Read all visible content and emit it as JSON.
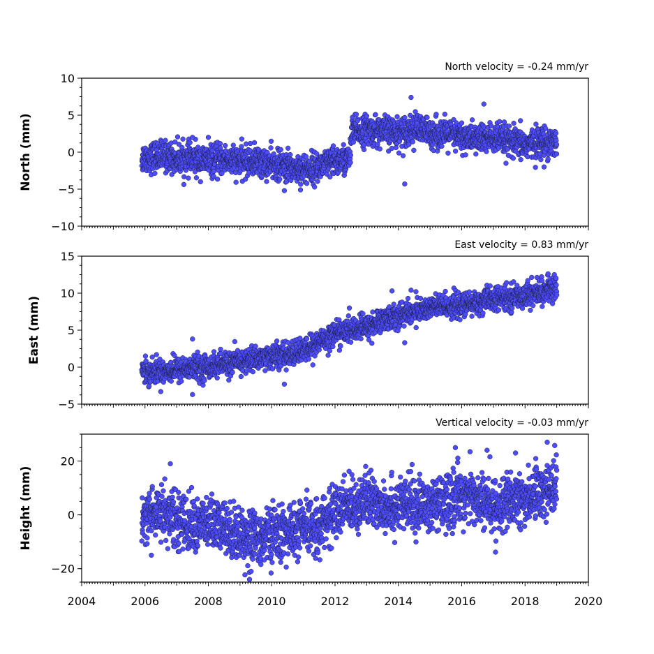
{
  "chart_data": {
    "type": "scatter",
    "x_axis": {
      "range": [
        2004,
        2020
      ],
      "ticks": [
        2004,
        2006,
        2008,
        2010,
        2012,
        2014,
        2016,
        2018,
        2020
      ],
      "tick_labels": [
        "2004",
        "2006",
        "2008",
        "2010",
        "2012",
        "2014",
        "2016",
        "2018",
        "2020"
      ]
    },
    "colors": {
      "marker_fill": "#4d4dff",
      "marker_edge": "#1a1a3a"
    },
    "panels": [
      {
        "id": "north",
        "ylabel": "North (mm)",
        "annotation": "North velocity = -0.24 mm/yr",
        "ylim": [
          -10,
          10
        ],
        "yticks": [
          -10,
          -5,
          0,
          5,
          10
        ],
        "ytick_labels": [
          "−10",
          "−5",
          "0",
          "5",
          "10"
        ],
        "x": [
          2005.9,
          2006.5,
          2007.0,
          2007.5,
          2008.0,
          2008.5,
          2009.0,
          2009.5,
          2010.0,
          2010.5,
          2011.0,
          2011.5,
          2012.0,
          2012.45,
          2012.55,
          2013.0,
          2013.5,
          2014.0,
          2014.5,
          2015.0,
          2015.5,
          2016.0,
          2016.5,
          2017.0,
          2017.5,
          2018.0,
          2018.5,
          2019.0
        ],
        "y": [
          -0.8,
          -0.5,
          -0.8,
          -1.0,
          -1.2,
          -1.0,
          -1.3,
          -1.2,
          -1.7,
          -2.0,
          -2.3,
          -2.0,
          -1.3,
          -1.0,
          2.8,
          3.0,
          2.8,
          2.7,
          3.2,
          2.6,
          2.4,
          2.0,
          1.8,
          1.9,
          1.4,
          1.0,
          1.4,
          1.5
        ],
        "scatter": 1.0,
        "outliers": [
          [
            2014.2,
            -4.3
          ],
          [
            2014.4,
            7.4
          ],
          [
            2016.7,
            6.5
          ],
          [
            2018.6,
            -2.0
          ],
          [
            2010.4,
            -5.2
          ],
          [
            2007.5,
            2.0
          ],
          [
            2008.0,
            2.0
          ]
        ]
      },
      {
        "id": "east",
        "ylabel": "East (mm)",
        "annotation": "East velocity = 0.83 mm/yr",
        "ylim": [
          -5,
          15
        ],
        "yticks": [
          -5,
          0,
          5,
          10,
          15
        ],
        "ytick_labels": [
          "−5",
          "0",
          "5",
          "10",
          "15"
        ],
        "x": [
          2005.9,
          2006.5,
          2007.0,
          2007.5,
          2008.0,
          2008.5,
          2009.0,
          2009.5,
          2010.0,
          2010.5,
          2011.0,
          2011.5,
          2012.0,
          2012.5,
          2013.0,
          2013.5,
          2014.0,
          2014.5,
          2015.0,
          2015.5,
          2016.0,
          2016.5,
          2017.0,
          2017.5,
          2018.0,
          2018.5,
          2019.0
        ],
        "y": [
          -0.5,
          -0.6,
          -0.3,
          -0.1,
          0.0,
          0.4,
          0.7,
          1.2,
          1.5,
          1.6,
          2.2,
          3.4,
          4.6,
          5.0,
          5.4,
          6.4,
          7.0,
          7.5,
          8.0,
          8.3,
          8.3,
          8.7,
          9.2,
          9.4,
          9.8,
          10.1,
          10.8
        ],
        "scatter": 0.8,
        "outliers": [
          [
            2007.5,
            3.8
          ],
          [
            2007.5,
            -3.7
          ],
          [
            2010.4,
            -2.3
          ],
          [
            2011.3,
            0.3
          ],
          [
            2013.8,
            10.3
          ],
          [
            2014.2,
            3.3
          ],
          [
            2014.4,
            10.4
          ]
        ]
      },
      {
        "id": "height",
        "ylabel": "Height (mm)",
        "annotation": "Vertical velocity = -0.03 mm/yr",
        "ylim": [
          -25,
          30
        ],
        "yticks": [
          -20,
          0,
          20
        ],
        "ytick_labels": [
          "−20",
          "0",
          "20"
        ],
        "x": [
          2005.9,
          2006.5,
          2007.0,
          2007.5,
          2008.0,
          2008.5,
          2009.0,
          2009.5,
          2010.0,
          2010.5,
          2011.0,
          2011.5,
          2012.0,
          2012.5,
          2013.0,
          2013.5,
          2014.0,
          2014.5,
          2015.0,
          2015.5,
          2016.0,
          2016.5,
          2017.0,
          2017.5,
          2018.0,
          2018.5,
          2019.0
        ],
        "y": [
          -1.0,
          2.0,
          -2.0,
          -4.0,
          -3.0,
          -5.0,
          -7.0,
          -9.0,
          -7.0,
          -7.0,
          -5.0,
          -4.0,
          1.0,
          4.0,
          5.0,
          4.0,
          3.0,
          4.0,
          3.0,
          4.0,
          8.0,
          6.0,
          3.0,
          4.0,
          6.0,
          9.0,
          10.0
        ],
        "scatter": 5.0,
        "outliers": [
          [
            2006.2,
            -15.0
          ],
          [
            2006.8,
            19.0
          ],
          [
            2009.3,
            -24.0
          ],
          [
            2009.35,
            -21.0
          ],
          [
            2015.8,
            25.0
          ],
          [
            2016.8,
            24.0
          ],
          [
            2018.7,
            27.0
          ],
          [
            2017.7,
            23.0
          ]
        ]
      }
    ]
  }
}
